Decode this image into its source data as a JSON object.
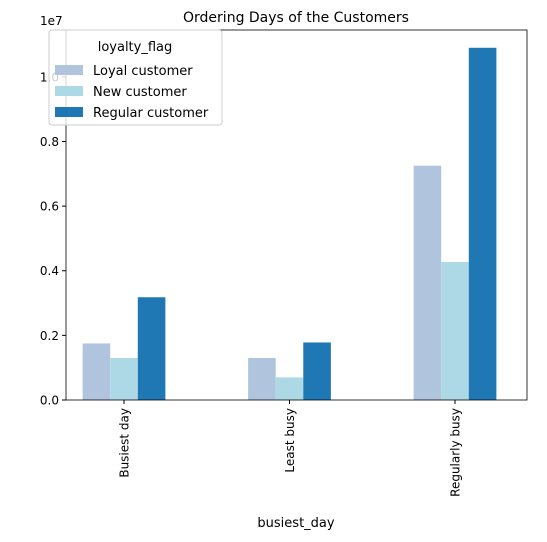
{
  "chart_data": {
    "type": "bar",
    "title": "Ordering Days of the Customers",
    "x_label": "busiest_day",
    "y_offset_label": "1e7",
    "legend_title": "loyalty_flag",
    "legend_position": "upper left",
    "categories": [
      "Busiest day",
      "Least busy",
      "Regularly busy"
    ],
    "series": [
      {
        "name": "Loyal customer",
        "color": "#b0c4de",
        "values": [
          0.175,
          0.13,
          0.725
        ]
      },
      {
        "name": "New customer",
        "color": "#add8e6",
        "values": [
          0.13,
          0.07,
          0.427
        ]
      },
      {
        "name": "Regular customer",
        "color": "#1f77b4",
        "values": [
          0.318,
          0.178,
          1.09
        ]
      }
    ],
    "ylim": [
      0,
      1.145
    ],
    "yticks": [
      {
        "value": 0,
        "label": "0.0"
      },
      {
        "value": 0.2,
        "label": "0.2"
      },
      {
        "value": 0.4,
        "label": "0.4"
      },
      {
        "value": 0.6,
        "label": "0.6"
      },
      {
        "value": 0.8,
        "label": "0.8"
      },
      {
        "value": 1.0,
        "label": "1.0"
      }
    ]
  }
}
